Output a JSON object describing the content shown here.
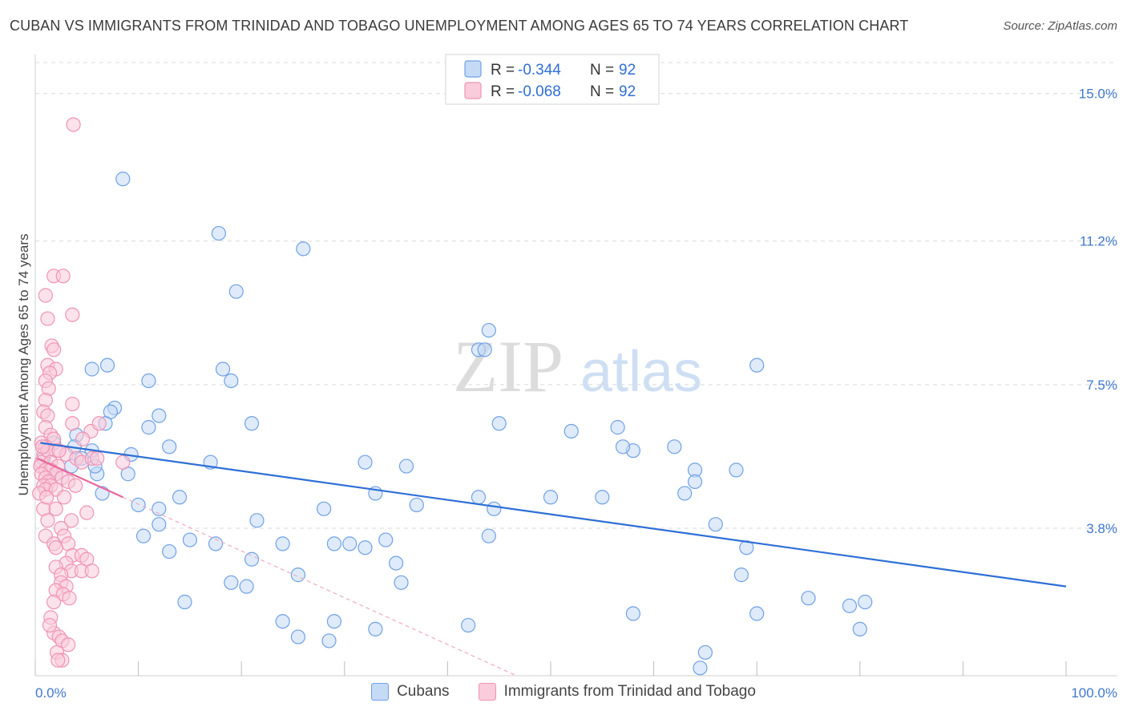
{
  "chart_data": {
    "type": "scatter",
    "title": "CUBAN VS IMMIGRANTS FROM TRINIDAD AND TOBAGO UNEMPLOYMENT AMONG AGES 65 TO 74 YEARS CORRELATION CHART",
    "source": "Source: ZipAtlas.com",
    "xlabel": "",
    "ylabel": "Unemployment Among Ages 65 to 74 years",
    "xlim": [
      0,
      100
    ],
    "ylim": [
      0,
      15.8
    ],
    "x_tick_labels": {
      "left": "0.0%",
      "right": "100.0%"
    },
    "y_ticks": [
      {
        "value": 3.8,
        "label": "3.8%"
      },
      {
        "value": 7.5,
        "label": "7.5%"
      },
      {
        "value": 11.2,
        "label": "11.2%"
      },
      {
        "value": 15.0,
        "label": "15.0%"
      }
    ],
    "watermark": {
      "zip": "ZIP",
      "atlas": "atlas"
    },
    "legend_stats": [
      {
        "r_label": "R =",
        "r_value": "-0.344",
        "n_label": "N =",
        "n_value": "92"
      },
      {
        "r_label": "R =",
        "r_value": "-0.068",
        "n_label": "N =",
        "n_value": "92"
      }
    ],
    "series": [
      {
        "name": "Cubans",
        "color": "#6fa1e6",
        "fill": "#c5daf5",
        "line_color": "#2f6fd6",
        "trend": {
          "x": [
            0.5,
            100
          ],
          "y": [
            6.0,
            2.3
          ]
        },
        "points": [
          [
            8.5,
            12.8
          ],
          [
            17.8,
            11.4
          ],
          [
            26.0,
            11.0
          ],
          [
            19.5,
            9.9
          ],
          [
            44.0,
            8.9
          ],
          [
            43.0,
            8.4
          ],
          [
            43.6,
            8.4
          ],
          [
            70.0,
            8.0
          ],
          [
            5.5,
            7.9
          ],
          [
            7.0,
            8.0
          ],
          [
            11.0,
            7.6
          ],
          [
            18.2,
            7.9
          ],
          [
            19.0,
            7.6
          ],
          [
            7.7,
            6.9
          ],
          [
            7.3,
            6.8
          ],
          [
            12.0,
            6.7
          ],
          [
            6.8,
            6.5
          ],
          [
            11.0,
            6.4
          ],
          [
            21.0,
            6.5
          ],
          [
            45.0,
            6.5
          ],
          [
            52.0,
            6.3
          ],
          [
            56.5,
            6.4
          ],
          [
            13.0,
            5.9
          ],
          [
            5.5,
            5.8
          ],
          [
            9.3,
            5.7
          ],
          [
            58.0,
            5.8
          ],
          [
            57.0,
            5.9
          ],
          [
            62.0,
            5.9
          ],
          [
            64.0,
            5.3
          ],
          [
            68.0,
            5.3
          ],
          [
            3.5,
            5.4
          ],
          [
            4.5,
            5.6
          ],
          [
            17.0,
            5.5
          ],
          [
            32.0,
            5.5
          ],
          [
            36.0,
            5.4
          ],
          [
            6.0,
            5.2
          ],
          [
            2.0,
            5.2
          ],
          [
            9.0,
            5.2
          ],
          [
            64.0,
            5.0
          ],
          [
            63.0,
            4.7
          ],
          [
            33.0,
            4.7
          ],
          [
            43.0,
            4.6
          ],
          [
            50.0,
            4.6
          ],
          [
            55.0,
            4.6
          ],
          [
            6.5,
            4.7
          ],
          [
            14.0,
            4.6
          ],
          [
            10.0,
            4.4
          ],
          [
            12.0,
            4.3
          ],
          [
            28.0,
            4.3
          ],
          [
            37.0,
            4.4
          ],
          [
            44.5,
            4.3
          ],
          [
            21.5,
            4.0
          ],
          [
            12.0,
            3.9
          ],
          [
            66.0,
            3.9
          ],
          [
            10.5,
            3.6
          ],
          [
            15.0,
            3.5
          ],
          [
            44.0,
            3.6
          ],
          [
            34.0,
            3.5
          ],
          [
            17.5,
            3.4
          ],
          [
            24.0,
            3.4
          ],
          [
            29.0,
            3.4
          ],
          [
            30.5,
            3.4
          ],
          [
            32.0,
            3.3
          ],
          [
            13.0,
            3.2
          ],
          [
            21.0,
            3.0
          ],
          [
            35.0,
            2.9
          ],
          [
            69.0,
            3.3
          ],
          [
            25.5,
            2.6
          ],
          [
            19.0,
            2.4
          ],
          [
            20.5,
            2.3
          ],
          [
            35.5,
            2.4
          ],
          [
            68.5,
            2.6
          ],
          [
            14.5,
            1.9
          ],
          [
            75.0,
            2.0
          ],
          [
            79.0,
            1.8
          ],
          [
            80.5,
            1.9
          ],
          [
            58.0,
            1.6
          ],
          [
            70.0,
            1.6
          ],
          [
            24.0,
            1.4
          ],
          [
            29.0,
            1.4
          ],
          [
            33.0,
            1.2
          ],
          [
            42.0,
            1.3
          ],
          [
            25.5,
            1.0
          ],
          [
            28.5,
            0.9
          ],
          [
            65.0,
            0.6
          ],
          [
            80.0,
            1.2
          ],
          [
            64.5,
            0.2
          ],
          [
            5.8,
            5.4
          ],
          [
            4.0,
            6.2
          ],
          [
            3.8,
            5.9
          ],
          [
            1.8,
            6.0
          ],
          [
            0.8,
            5.6
          ]
        ]
      },
      {
        "name": "Immigrants from Trinidad and Tobago",
        "color": "#ef93b2",
        "fill": "#f9cbdb",
        "line_color": "#e8669a",
        "trend": {
          "x": [
            0.2,
            8.5
          ],
          "y": [
            5.6,
            4.6
          ]
        },
        "points": [
          [
            3.7,
            14.2
          ],
          [
            1.8,
            10.3
          ],
          [
            2.7,
            10.3
          ],
          [
            1.0,
            9.8
          ],
          [
            3.6,
            9.3
          ],
          [
            1.2,
            9.2
          ],
          [
            1.6,
            8.5
          ],
          [
            1.8,
            8.4
          ],
          [
            1.2,
            8.0
          ],
          [
            2.0,
            7.9
          ],
          [
            1.4,
            7.8
          ],
          [
            1.0,
            7.6
          ],
          [
            1.3,
            7.4
          ],
          [
            1.0,
            7.1
          ],
          [
            3.6,
            7.0
          ],
          [
            0.8,
            6.8
          ],
          [
            1.2,
            6.7
          ],
          [
            3.6,
            6.5
          ],
          [
            5.4,
            6.3
          ],
          [
            6.2,
            6.5
          ],
          [
            1.0,
            6.4
          ],
          [
            1.5,
            6.2
          ],
          [
            1.8,
            6.1
          ],
          [
            4.6,
            6.1
          ],
          [
            0.6,
            6.0
          ],
          [
            1.0,
            5.9
          ],
          [
            2.0,
            5.8
          ],
          [
            0.8,
            5.7
          ],
          [
            1.2,
            5.8
          ],
          [
            3.0,
            5.7
          ],
          [
            4.0,
            5.6
          ],
          [
            4.5,
            5.5
          ],
          [
            0.6,
            5.5
          ],
          [
            1.5,
            5.5
          ],
          [
            2.2,
            5.4
          ],
          [
            5.5,
            5.6
          ],
          [
            6.0,
            5.6
          ],
          [
            8.5,
            5.5
          ],
          [
            0.5,
            5.4
          ],
          [
            1.0,
            5.3
          ],
          [
            1.5,
            5.3
          ],
          [
            2.0,
            5.2
          ],
          [
            2.6,
            5.1
          ],
          [
            3.2,
            5.0
          ],
          [
            0.6,
            5.2
          ],
          [
            1.0,
            5.1
          ],
          [
            1.3,
            5.0
          ],
          [
            0.8,
            4.9
          ],
          [
            1.5,
            4.9
          ],
          [
            1.0,
            4.8
          ],
          [
            2.0,
            4.8
          ],
          [
            0.4,
            4.7
          ],
          [
            2.8,
            4.6
          ],
          [
            0.8,
            4.3
          ],
          [
            2.0,
            4.3
          ],
          [
            3.5,
            4.0
          ],
          [
            1.2,
            4.0
          ],
          [
            2.5,
            3.8
          ],
          [
            1.0,
            3.6
          ],
          [
            2.8,
            3.6
          ],
          [
            1.8,
            3.4
          ],
          [
            3.2,
            3.4
          ],
          [
            2.0,
            3.3
          ],
          [
            3.6,
            3.1
          ],
          [
            4.5,
            3.1
          ],
          [
            5.0,
            3.0
          ],
          [
            3.0,
            2.9
          ],
          [
            2.0,
            2.8
          ],
          [
            3.5,
            2.7
          ],
          [
            2.5,
            2.6
          ],
          [
            4.5,
            2.7
          ],
          [
            5.5,
            2.7
          ],
          [
            2.5,
            2.4
          ],
          [
            3.0,
            2.3
          ],
          [
            2.0,
            2.2
          ],
          [
            2.7,
            2.1
          ],
          [
            3.3,
            2.0
          ],
          [
            1.8,
            1.9
          ],
          [
            1.5,
            1.5
          ],
          [
            1.8,
            1.1
          ],
          [
            2.3,
            1.0
          ],
          [
            2.6,
            0.9
          ],
          [
            3.2,
            0.8
          ],
          [
            1.4,
            1.3
          ],
          [
            2.1,
            0.6
          ],
          [
            2.6,
            0.4
          ],
          [
            2.2,
            0.4
          ],
          [
            0.7,
            5.9
          ],
          [
            1.1,
            4.6
          ],
          [
            2.3,
            5.8
          ],
          [
            3.9,
            4.9
          ],
          [
            5.0,
            4.2
          ]
        ]
      }
    ]
  }
}
